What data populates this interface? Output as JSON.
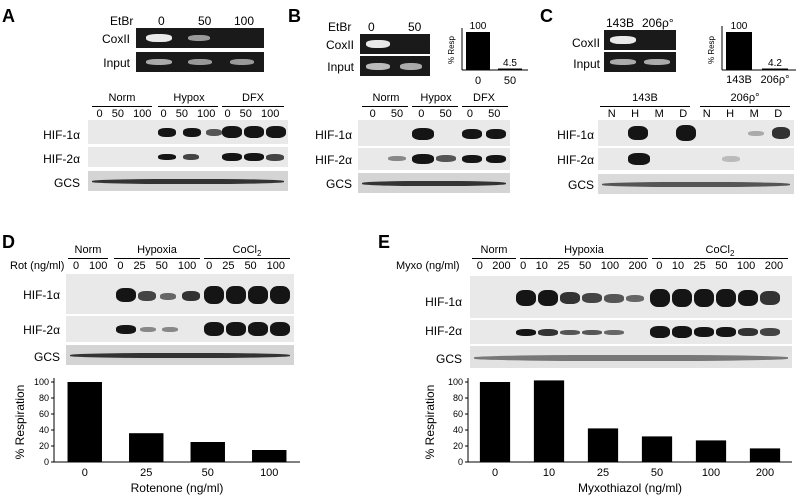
{
  "panels": {
    "A": {
      "label": "A",
      "etbr": {
        "title": "EtBr",
        "doses": [
          "0",
          "50",
          "100"
        ]
      },
      "gel_rows": [
        "CoxII",
        "Input"
      ],
      "groups": [
        "Norm",
        "Hypox",
        "DFX"
      ],
      "lanes": [
        "0",
        "50",
        "100",
        "0",
        "50",
        "100",
        "0",
        "50",
        "100"
      ],
      "blot_rows": [
        "HIF-1α",
        "HIF-2α",
        "GCS"
      ]
    },
    "B": {
      "label": "B",
      "etbr": {
        "title": "EtBr",
        "doses": [
          "0",
          "50"
        ]
      },
      "gel_rows": [
        "CoxII",
        "Input"
      ],
      "groups": [
        "Norm",
        "Hypox",
        "DFX"
      ],
      "lanes": [
        "0",
        "50",
        "0",
        "50",
        "0",
        "50"
      ],
      "blot_rows": [
        "HIF-1α",
        "HIF-2α",
        "GCS"
      ],
      "resp": {
        "axis": "% Resp",
        "ticks": [
          "0",
          "50"
        ],
        "values": [
          "100",
          "4.5"
        ]
      }
    },
    "C": {
      "label": "C",
      "gel_cols": [
        "143B",
        "206ρ°"
      ],
      "gel_rows": [
        "CoxII",
        "Input"
      ],
      "groups": [
        "143B",
        "206ρ°"
      ],
      "lanes": [
        "N",
        "H",
        "M",
        "D",
        "N",
        "H",
        "M",
        "D"
      ],
      "blot_rows": [
        "HIF-1α",
        "HIF-2α",
        "GCS"
      ],
      "resp": {
        "axis": "% Resp",
        "ticks": [
          "143B",
          "206ρ°"
        ],
        "values": [
          "100",
          "4.2"
        ]
      }
    },
    "D": {
      "label": "D",
      "dose_label": "Rot (ng/ml)",
      "groups": [
        "Norm",
        "Hypoxia",
        "CoCl2"
      ],
      "lanes": [
        "0",
        "100",
        "0",
        "25",
        "50",
        "100",
        "0",
        "25",
        "50",
        "100"
      ],
      "blot_rows": [
        "HIF-1α",
        "HIF-2α",
        "GCS"
      ]
    },
    "E": {
      "label": "E",
      "dose_label": "Myxo (ng/ml)",
      "groups": [
        "Norm",
        "Hypoxia",
        "CoCl2"
      ],
      "lanes": [
        "0",
        "200",
        "0",
        "10",
        "25",
        "50",
        "100",
        "200",
        "0",
        "10",
        "25",
        "50",
        "100",
        "200"
      ],
      "blot_rows": [
        "HIF-1α",
        "HIF-2α",
        "GCS"
      ]
    }
  },
  "chart_data": [
    {
      "type": "bar",
      "categories": [
        "0",
        "25",
        "50",
        "100"
      ],
      "values": [
        100,
        36,
        25,
        15
      ],
      "xlabel": "Rotenone (ng/ml)",
      "ylabel": "% Respiration",
      "yticks": [
        "0",
        "20",
        "40",
        "60",
        "80",
        "100"
      ],
      "ylim": [
        0,
        100
      ],
      "color": "#000000"
    },
    {
      "type": "bar",
      "categories": [
        "0",
        "10",
        "25",
        "50",
        "100",
        "200"
      ],
      "values": [
        100,
        102,
        42,
        32,
        27,
        17
      ],
      "xlabel": "Myxothiazol (ng/ml)",
      "ylabel": "% Respiration",
      "yticks": [
        "0",
        "20",
        "40",
        "60",
        "80",
        "100"
      ],
      "ylim": [
        0,
        100
      ],
      "color": "#000000"
    }
  ]
}
